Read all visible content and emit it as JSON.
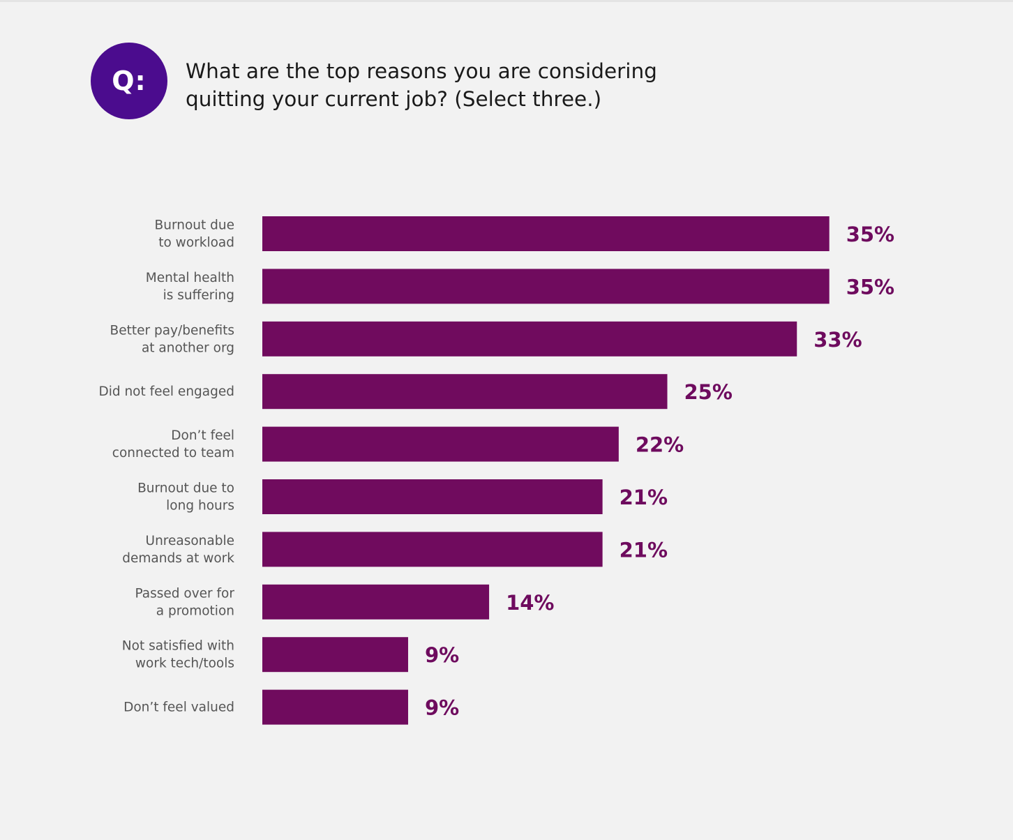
{
  "badge": "Q:",
  "question": "What are the top reasons you are considering quitting your current job? (Select three.)",
  "colors": {
    "badge": "#4b0c8e",
    "bar": "#700b5e",
    "value_text": "#6e0b5e",
    "background": "#f2f2f2"
  },
  "chart_data": {
    "type": "bar",
    "orientation": "horizontal",
    "categories": [
      [
        "Burnout due",
        "to workload"
      ],
      [
        "Mental health",
        "is suffering"
      ],
      [
        "Better pay/benefits",
        "at another org"
      ],
      [
        "Did not feel engaged"
      ],
      [
        "Don’t feel",
        "connected to team"
      ],
      [
        "Burnout due to",
        "long hours"
      ],
      [
        "Unreasonable",
        "demands at work"
      ],
      [
        "Passed over for",
        "a promotion"
      ],
      [
        "Not satisfied with",
        "work tech/tools"
      ],
      [
        "Don’t feel valued"
      ]
    ],
    "values": [
      35,
      35,
      33,
      25,
      22,
      21,
      21,
      14,
      9,
      9
    ],
    "value_labels": [
      "35%",
      "35%",
      "33%",
      "25%",
      "22%",
      "21%",
      "21%",
      "14%",
      "9%",
      "9%"
    ],
    "unit": "%",
    "grid": false,
    "legend": false
  }
}
